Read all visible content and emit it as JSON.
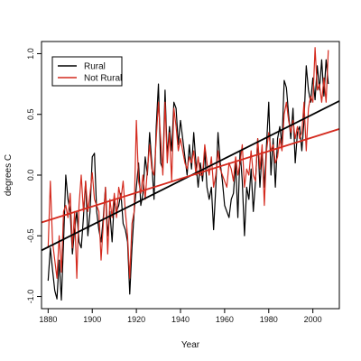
{
  "chart_data": {
    "type": "line",
    "xlabel": "Year",
    "ylabel": "degrees C",
    "xlim": [
      1877,
      2012
    ],
    "ylim": [
      -1.1,
      1.1
    ],
    "x_ticks": [
      1880,
      1900,
      1920,
      1940,
      1960,
      1980,
      2000
    ],
    "y_ticks": [
      -1.0,
      -0.5,
      0.0,
      0.5,
      1.0
    ],
    "x_tick_labels": [
      "1880",
      "1900",
      "1920",
      "1940",
      "1960",
      "1980",
      "2000"
    ],
    "y_tick_labels": [
      "-1.0",
      "-0.5",
      "0.0",
      "0.5",
      "1.0"
    ],
    "grid": false,
    "legend_position": "top-left",
    "series": [
      {
        "name": "Rural",
        "color": "#000000",
        "x": [
          1880,
          1881,
          1882,
          1883,
          1884,
          1885,
          1886,
          1887,
          1888,
          1889,
          1890,
          1891,
          1892,
          1893,
          1894,
          1895,
          1896,
          1897,
          1898,
          1899,
          1900,
          1901,
          1902,
          1903,
          1904,
          1905,
          1906,
          1907,
          1908,
          1909,
          1910,
          1911,
          1912,
          1913,
          1914,
          1915,
          1916,
          1917,
          1918,
          1919,
          1920,
          1921,
          1922,
          1923,
          1924,
          1925,
          1926,
          1927,
          1928,
          1929,
          1930,
          1931,
          1932,
          1933,
          1934,
          1935,
          1936,
          1937,
          1938,
          1939,
          1940,
          1941,
          1942,
          1943,
          1944,
          1945,
          1946,
          1947,
          1948,
          1949,
          1950,
          1951,
          1952,
          1953,
          1954,
          1955,
          1956,
          1957,
          1958,
          1959,
          1960,
          1961,
          1962,
          1963,
          1964,
          1965,
          1966,
          1967,
          1968,
          1969,
          1970,
          1971,
          1972,
          1973,
          1974,
          1975,
          1976,
          1977,
          1978,
          1979,
          1980,
          1981,
          1982,
          1983,
          1984,
          1985,
          1986,
          1987,
          1988,
          1989,
          1990,
          1991,
          1992,
          1993,
          1994,
          1995,
          1996,
          1997,
          1998,
          1999,
          2000,
          2001,
          2002,
          2003,
          2004,
          2005,
          2006,
          2007
        ],
        "values": [
          -0.87,
          -0.6,
          -0.78,
          -0.95,
          -1.02,
          -0.7,
          -1.03,
          -0.55,
          0.0,
          -0.2,
          -0.3,
          -0.65,
          -0.45,
          -0.3,
          -0.55,
          -0.6,
          -0.35,
          -0.05,
          -0.5,
          -0.3,
          0.15,
          0.18,
          -0.3,
          -0.45,
          -0.55,
          -0.35,
          -0.1,
          -0.5,
          -0.3,
          -0.55,
          -0.2,
          -0.3,
          -0.25,
          -0.15,
          -0.4,
          -0.45,
          -0.55,
          -0.98,
          -0.6,
          -0.3,
          -0.1,
          0.1,
          -0.25,
          -0.15,
          0.15,
          0.0,
          0.35,
          0.1,
          -0.2,
          0.4,
          0.75,
          0.1,
          0.05,
          0.7,
          0.15,
          0.4,
          0.2,
          0.6,
          0.55,
          0.25,
          0.45,
          0.3,
          0.15,
          0.0,
          0.25,
          0.05,
          0.35,
          0.1,
          -0.1,
          0.1,
          -0.05,
          0.2,
          -0.1,
          -0.2,
          -0.1,
          -0.45,
          -0.1,
          0.35,
          0.1,
          -0.05,
          -0.25,
          -0.3,
          -0.35,
          -0.2,
          -0.15,
          0.1,
          -0.35,
          0.2,
          -0.05,
          -0.5,
          -0.1,
          -0.2,
          0.05,
          -0.3,
          -0.05,
          0.3,
          -0.1,
          0.2,
          -0.1,
          0.25,
          0.6,
          0.0,
          0.3,
          -0.1,
          0.3,
          0.4,
          0.25,
          0.78,
          0.72,
          0.5,
          0.3,
          0.55,
          0.1,
          0.35,
          0.4,
          0.2,
          0.45,
          0.9,
          0.7,
          0.6,
          0.8,
          0.62,
          0.9,
          0.7,
          0.95,
          0.65,
          0.95,
          0.75
        ]
      },
      {
        "name": "Not Rural",
        "color": "#d42a1e",
        "x": [
          1880,
          1881,
          1882,
          1883,
          1884,
          1885,
          1886,
          1887,
          1888,
          1889,
          1890,
          1891,
          1892,
          1893,
          1894,
          1895,
          1896,
          1897,
          1898,
          1899,
          1900,
          1901,
          1902,
          1903,
          1904,
          1905,
          1906,
          1907,
          1908,
          1909,
          1910,
          1911,
          1912,
          1913,
          1914,
          1915,
          1916,
          1917,
          1918,
          1919,
          1920,
          1921,
          1922,
          1923,
          1924,
          1925,
          1926,
          1927,
          1928,
          1929,
          1930,
          1931,
          1932,
          1933,
          1934,
          1935,
          1936,
          1937,
          1938,
          1939,
          1940,
          1941,
          1942,
          1943,
          1944,
          1945,
          1946,
          1947,
          1948,
          1949,
          1950,
          1951,
          1952,
          1953,
          1954,
          1955,
          1956,
          1957,
          1958,
          1959,
          1960,
          1961,
          1962,
          1963,
          1964,
          1965,
          1966,
          1967,
          1968,
          1969,
          1970,
          1971,
          1972,
          1973,
          1974,
          1975,
          1976,
          1977,
          1978,
          1979,
          1980,
          1981,
          1982,
          1983,
          1984,
          1985,
          1986,
          1987,
          1988,
          1989,
          1990,
          1991,
          1992,
          1993,
          1994,
          1995,
          1996,
          1997,
          1998,
          1999,
          2000,
          2001,
          2002,
          2003,
          2004,
          2005,
          2006,
          2007
        ],
        "values": [
          -0.6,
          -0.05,
          -0.55,
          -0.7,
          -0.85,
          -0.5,
          -0.8,
          -0.3,
          -0.25,
          -0.35,
          -0.15,
          -0.6,
          -0.3,
          -0.85,
          -0.25,
          0.0,
          -0.3,
          -0.05,
          -0.3,
          -0.15,
          0.02,
          -0.2,
          -0.25,
          -0.3,
          -0.7,
          -0.4,
          -0.1,
          -0.65,
          -0.2,
          -0.35,
          -0.15,
          -0.35,
          -0.1,
          -0.2,
          -0.05,
          -0.3,
          -0.5,
          -0.85,
          -0.4,
          -0.3,
          0.45,
          -0.05,
          -0.15,
          0.0,
          -0.2,
          0.05,
          0.25,
          0.05,
          0.0,
          0.3,
          0.6,
          0.3,
          0.0,
          0.6,
          0.1,
          0.35,
          -0.05,
          0.55,
          0.4,
          0.2,
          0.3,
          0.2,
          0.1,
          0.05,
          0.15,
          0.1,
          0.2,
          0.0,
          0.15,
          0.0,
          0.0,
          0.25,
          0.1,
          0.0,
          0.15,
          -0.1,
          0.0,
          0.2,
          0.05,
          0.0,
          -0.05,
          -0.1,
          0.1,
          0.05,
          -0.05,
          0.15,
          0.0,
          0.1,
          0.25,
          -0.1,
          0.05,
          0.0,
          0.2,
          0.0,
          -0.05,
          0.3,
          0.05,
          0.25,
          -0.25,
          0.2,
          0.35,
          0.2,
          0.25,
          0.1,
          0.15,
          0.3,
          0.2,
          0.5,
          0.6,
          0.45,
          0.35,
          0.45,
          0.3,
          0.4,
          0.3,
          0.35,
          0.6,
          0.2,
          0.55,
          0.65,
          0.6,
          1.05,
          0.7,
          0.75,
          0.6,
          0.8,
          0.6,
          1.03
        ]
      }
    ],
    "trend_lines": [
      {
        "name": "Rural",
        "color": "#000000",
        "x": [
          1877,
          2012
        ],
        "values": [
          -0.62,
          0.61
        ]
      },
      {
        "name": "Not Rural",
        "color": "#d42a1e",
        "x": [
          1877,
          2012
        ],
        "values": [
          -0.39,
          0.38
        ]
      }
    ]
  }
}
